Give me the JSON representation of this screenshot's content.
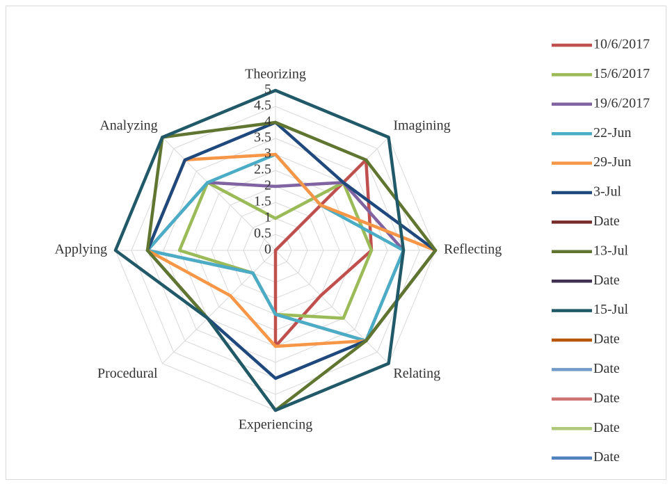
{
  "chart_data": {
    "type": "radar",
    "categories": [
      "Theorizing",
      "Imagining",
      "Reflecting",
      "Relating",
      "Experiencing",
      "Procedural",
      "Applying",
      "Analyzing"
    ],
    "series": [
      {
        "name": "10/6/2017",
        "color": "#c0504d",
        "values": [
          0,
          4,
          3,
          2,
          3,
          0,
          0,
          0
        ]
      },
      {
        "name": "15/6/2017",
        "color": "#9bbb59",
        "values": [
          1,
          3,
          3,
          3,
          2,
          1,
          3,
          3
        ]
      },
      {
        "name": "19/6/2017",
        "color": "#8064a2",
        "values": [
          2,
          3,
          4,
          4,
          2,
          1,
          4,
          3
        ]
      },
      {
        "name": "22-Jun",
        "color": "#4bacc6",
        "values": [
          3,
          2,
          4,
          4,
          2,
          1,
          4,
          3
        ]
      },
      {
        "name": "29-Jun",
        "color": "#f79646",
        "values": [
          3,
          2,
          5,
          4,
          3,
          2,
          4,
          4
        ]
      },
      {
        "name": "3-Jul",
        "color": "#1f497d",
        "values": [
          4,
          3,
          5,
          4,
          4,
          3,
          4,
          4
        ]
      },
      {
        "name": "Date",
        "color": "#772c2a",
        "values": [
          null,
          null,
          null,
          null,
          null,
          null,
          null,
          null
        ]
      },
      {
        "name": "13-Jul",
        "color": "#5f7530",
        "values": [
          4,
          4,
          5,
          4,
          5,
          3,
          4,
          5
        ]
      },
      {
        "name": "Date",
        "color": "#3f3151",
        "values": [
          null,
          null,
          null,
          null,
          null,
          null,
          null,
          null
        ]
      },
      {
        "name": "15-Jul",
        "color": "#215968",
        "values": [
          5,
          5,
          4,
          5,
          5,
          3,
          5,
          5
        ]
      },
      {
        "name": "Date",
        "color": "#b65708",
        "values": [
          null,
          null,
          null,
          null,
          null,
          null,
          null,
          null
        ]
      },
      {
        "name": "Date",
        "color": "#729aca",
        "values": [
          null,
          null,
          null,
          null,
          null,
          null,
          null,
          null
        ]
      },
      {
        "name": "Date",
        "color": "#cd7371",
        "values": [
          null,
          null,
          null,
          null,
          null,
          null,
          null,
          null
        ]
      },
      {
        "name": "Date",
        "color": "#afc97a",
        "values": [
          null,
          null,
          null,
          null,
          null,
          null,
          null,
          null
        ]
      },
      {
        "name": "Date",
        "color": "#4f81bd",
        "values": [
          null,
          null,
          null,
          null,
          null,
          null,
          null,
          null
        ]
      }
    ],
    "rlim": [
      0,
      5
    ],
    "rticks": [
      0,
      0.5,
      1,
      1.5,
      2,
      2.5,
      3,
      3.5,
      4,
      4.5,
      5
    ],
    "grid": true,
    "legend": "right"
  }
}
